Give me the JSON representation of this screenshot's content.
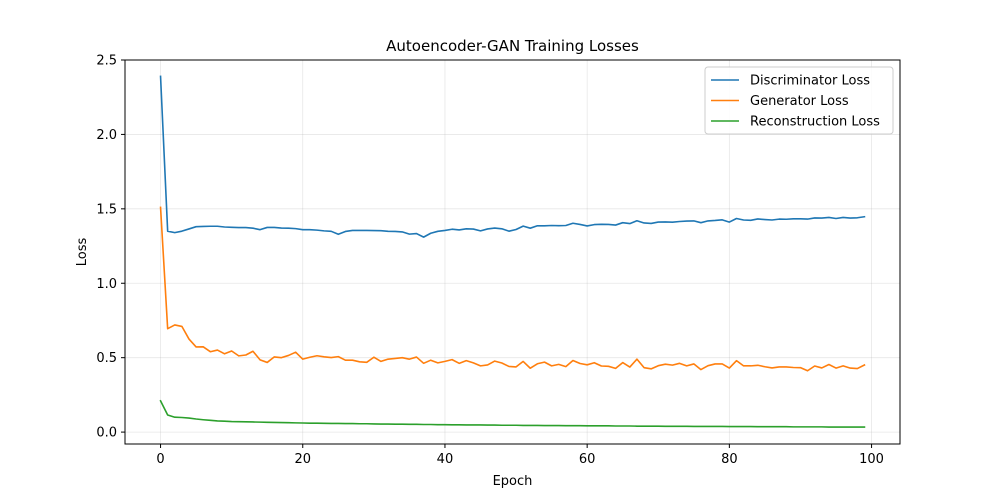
{
  "chart_data": {
    "type": "line",
    "title": "Autoencoder-GAN Training Losses",
    "xlabel": "Epoch",
    "ylabel": "Loss",
    "xlim": [
      -5,
      104
    ],
    "ylim": [
      -0.08,
      2.5
    ],
    "xticks": [
      0,
      20,
      40,
      60,
      80,
      100
    ],
    "yticks": [
      0.0,
      0.5,
      1.0,
      1.5,
      2.0,
      2.5
    ],
    "xtick_labels": [
      "0",
      "20",
      "40",
      "60",
      "80",
      "100"
    ],
    "ytick_labels": [
      "0.0",
      "0.5",
      "1.0",
      "1.5",
      "2.0",
      "2.5"
    ],
    "grid": true,
    "legend_position": "top-right",
    "x": [
      0,
      1,
      2,
      3,
      4,
      5,
      6,
      7,
      8,
      9,
      10,
      11,
      12,
      13,
      14,
      15,
      16,
      17,
      18,
      19,
      20,
      21,
      22,
      23,
      24,
      25,
      26,
      27,
      28,
      29,
      30,
      31,
      32,
      33,
      34,
      35,
      36,
      37,
      38,
      39,
      40,
      41,
      42,
      43,
      44,
      45,
      46,
      47,
      48,
      49,
      50,
      51,
      52,
      53,
      54,
      55,
      56,
      57,
      58,
      59,
      60,
      61,
      62,
      63,
      64,
      65,
      66,
      67,
      68,
      69,
      70,
      71,
      72,
      73,
      74,
      75,
      76,
      77,
      78,
      79,
      80,
      81,
      82,
      83,
      84,
      85,
      86,
      87,
      88,
      89,
      90,
      91,
      92,
      93,
      94,
      95,
      96,
      97,
      98,
      99
    ],
    "series": [
      {
        "name": "Discriminator Loss",
        "color": "#1f77b4",
        "values": [
          2.39,
          1.35,
          1.34,
          1.35,
          1.365,
          1.38,
          1.382,
          1.383,
          1.383,
          1.378,
          1.376,
          1.374,
          1.374,
          1.37,
          1.36,
          1.375,
          1.375,
          1.371,
          1.37,
          1.367,
          1.36,
          1.36,
          1.357,
          1.352,
          1.349,
          1.329,
          1.348,
          1.355,
          1.355,
          1.355,
          1.354,
          1.353,
          1.349,
          1.348,
          1.345,
          1.33,
          1.334,
          1.31,
          1.336,
          1.349,
          1.355,
          1.363,
          1.358,
          1.366,
          1.364,
          1.352,
          1.365,
          1.371,
          1.366,
          1.35,
          1.361,
          1.384,
          1.37,
          1.386,
          1.386,
          1.388,
          1.387,
          1.388,
          1.403,
          1.395,
          1.385,
          1.394,
          1.396,
          1.395,
          1.391,
          1.407,
          1.401,
          1.42,
          1.405,
          1.402,
          1.411,
          1.412,
          1.41,
          1.415,
          1.418,
          1.419,
          1.407,
          1.419,
          1.422,
          1.426,
          1.411,
          1.435,
          1.425,
          1.423,
          1.432,
          1.428,
          1.425,
          1.431,
          1.43,
          1.433,
          1.433,
          1.431,
          1.439,
          1.438,
          1.442,
          1.435,
          1.442,
          1.438,
          1.44,
          1.447
        ]
      },
      {
        "name": "Generator Loss",
        "color": "#ff7f0e",
        "values": [
          1.51,
          0.695,
          0.72,
          0.71,
          0.625,
          0.572,
          0.573,
          0.54,
          0.551,
          0.526,
          0.545,
          0.512,
          0.518,
          0.543,
          0.485,
          0.468,
          0.505,
          0.5,
          0.515,
          0.537,
          0.49,
          0.503,
          0.513,
          0.506,
          0.501,
          0.507,
          0.483,
          0.483,
          0.472,
          0.469,
          0.503,
          0.475,
          0.49,
          0.495,
          0.5,
          0.49,
          0.504,
          0.462,
          0.483,
          0.465,
          0.475,
          0.487,
          0.462,
          0.48,
          0.465,
          0.445,
          0.451,
          0.477,
          0.464,
          0.441,
          0.438,
          0.475,
          0.429,
          0.459,
          0.47,
          0.445,
          0.455,
          0.44,
          0.481,
          0.461,
          0.452,
          0.466,
          0.444,
          0.442,
          0.428,
          0.467,
          0.437,
          0.49,
          0.433,
          0.425,
          0.446,
          0.456,
          0.45,
          0.462,
          0.445,
          0.458,
          0.42,
          0.446,
          0.458,
          0.458,
          0.43,
          0.48,
          0.445,
          0.445,
          0.449,
          0.439,
          0.431,
          0.438,
          0.438,
          0.434,
          0.433,
          0.412,
          0.444,
          0.431,
          0.454,
          0.43,
          0.445,
          0.43,
          0.427,
          0.451
        ]
      },
      {
        "name": "Reconstruction Loss",
        "color": "#2ca02c",
        "values": [
          0.21,
          0.115,
          0.1,
          0.098,
          0.094,
          0.088,
          0.083,
          0.079,
          0.075,
          0.073,
          0.071,
          0.07,
          0.069,
          0.068,
          0.067,
          0.066,
          0.065,
          0.064,
          0.063,
          0.062,
          0.061,
          0.06,
          0.06,
          0.059,
          0.058,
          0.058,
          0.057,
          0.057,
          0.056,
          0.056,
          0.055,
          0.054,
          0.054,
          0.053,
          0.053,
          0.052,
          0.052,
          0.051,
          0.051,
          0.05,
          0.05,
          0.049,
          0.049,
          0.048,
          0.048,
          0.048,
          0.047,
          0.047,
          0.046,
          0.046,
          0.046,
          0.045,
          0.045,
          0.045,
          0.044,
          0.044,
          0.044,
          0.043,
          0.043,
          0.043,
          0.042,
          0.042,
          0.042,
          0.042,
          0.041,
          0.041,
          0.041,
          0.04,
          0.04,
          0.04,
          0.04,
          0.039,
          0.039,
          0.039,
          0.039,
          0.038,
          0.038,
          0.038,
          0.038,
          0.038,
          0.037,
          0.037,
          0.037,
          0.037,
          0.036,
          0.036,
          0.036,
          0.036,
          0.036,
          0.035,
          0.035,
          0.035,
          0.035,
          0.035,
          0.034,
          0.034,
          0.034,
          0.034,
          0.034,
          0.034
        ]
      }
    ]
  }
}
